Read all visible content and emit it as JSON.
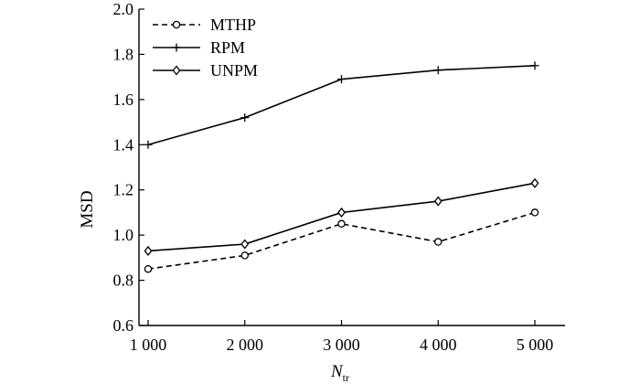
{
  "chart_data": {
    "type": "line",
    "title": "",
    "xlabel": {
      "main": "N",
      "sub": "tr"
    },
    "ylabel": "MSD",
    "x": [
      1000,
      2000,
      3000,
      4000,
      5000
    ],
    "x_tick_labels": [
      "1 000",
      "2 000",
      "3 000",
      "4 000",
      "5 000"
    ],
    "ylim": [
      0.6,
      2.0
    ],
    "y_ticks": [
      0.6,
      0.8,
      1.0,
      1.2,
      1.4,
      1.6,
      1.8,
      2.0
    ],
    "y_tick_labels": [
      "0.6",
      "0.8",
      "1.0",
      "1.2",
      "1.4",
      "1.6",
      "1.8",
      "2.0"
    ],
    "grid": false,
    "legend_position": "top-left",
    "series": [
      {
        "name": "MTHP",
        "marker": "circle",
        "line_style": "dashed",
        "color": "#000000",
        "values": [
          0.85,
          0.91,
          1.05,
          0.97,
          1.1
        ]
      },
      {
        "name": "RPM",
        "marker": "plus",
        "line_style": "solid",
        "color": "#000000",
        "values": [
          1.4,
          1.52,
          1.69,
          1.73,
          1.75
        ]
      },
      {
        "name": "UNPM",
        "marker": "diamond",
        "line_style": "solid",
        "color": "#000000",
        "values": [
          0.93,
          0.96,
          1.1,
          1.15,
          1.23
        ]
      }
    ]
  }
}
